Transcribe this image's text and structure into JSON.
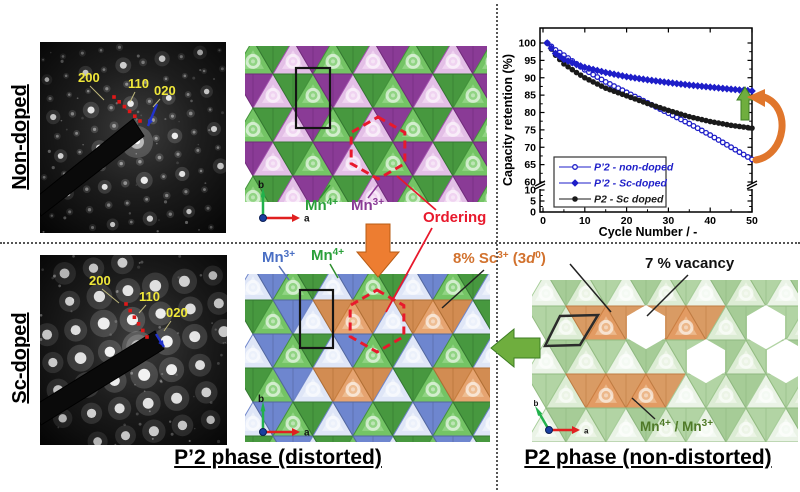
{
  "colors": {
    "mn4_green": "#2aa03a",
    "mn3_purple": "#8a3b96",
    "mn3_blue": "#4a6fc4",
    "sc_orange": "#d2722e",
    "ordering_red": "#e8192c",
    "mnmix_green": "#4f7a28",
    "vacancy_black": "#111111",
    "series_blue": "#1e1ec8",
    "series_black": "#1a1a1a",
    "arrow_orange": "#ed7d31",
    "arrow_green": "#6fae3e",
    "reflection_yellow": "#f0e83a"
  },
  "left_column": {
    "top_panel": {
      "side_label": "Non-doped",
      "reflections": [
        "200",
        "110",
        "020"
      ]
    },
    "bottom_panel": {
      "side_label": "Sc-doped",
      "reflections": [
        "200",
        "110",
        "020"
      ]
    }
  },
  "middle_top": {
    "mn4_label": {
      "base": "Mn",
      "sup": "4+"
    },
    "mn3_label": {
      "base": "Mn",
      "sup": "3+"
    },
    "ordering_label": "Ordering",
    "axis_a": "a",
    "axis_b": "b"
  },
  "middle_bottom": {
    "mn3_label": {
      "base": "Mn",
      "sup": "3+"
    },
    "mn4_label": {
      "base": "Mn",
      "sup": "4+"
    },
    "sc_label": {
      "pre": "8% Sc",
      "sup1": "3+",
      "mid": " (3",
      "d": "d",
      "sup2": "0",
      "post": ")"
    },
    "axis_a": "a",
    "axis_b": "b"
  },
  "right_bottom": {
    "vacancy_label": "7 % vacancy",
    "mn_label": {
      "pre": "Mn",
      "sup1": "4+",
      "mid": " / Mn",
      "sup2": "3+"
    },
    "axis_a": "a",
    "axis_b": "b"
  },
  "captions": {
    "p2prime": "P’2 phase (distorted)",
    "p2": "P2 phase (non-distorted)"
  },
  "chart_data": {
    "type": "line",
    "title": "",
    "xlabel": "Cycle Number / -",
    "ylabel": "Capacity retention (%)",
    "xlim": [
      0,
      50
    ],
    "x_ticks": [
      0,
      10,
      20,
      30,
      40,
      50
    ],
    "y_ticks_upper": [
      60,
      65,
      70,
      75,
      80,
      85,
      90,
      95,
      100
    ],
    "y_ticks_lower": [
      0,
      5,
      10
    ],
    "axis_break": {
      "axis": "y",
      "between": [
        10,
        60
      ]
    },
    "grid": false,
    "legend_position": "lower-left",
    "series": [
      {
        "name": "P’2 - non-doped",
        "marker": "open-circle",
        "color": "#1e1ec8",
        "x": [
          1,
          3,
          5,
          8,
          10,
          15,
          20,
          25,
          30,
          35,
          40,
          45,
          50
        ],
        "y": [
          100,
          98,
          96.5,
          94,
          92.3,
          88.8,
          85.8,
          82.8,
          79.8,
          76.8,
          73.5,
          70,
          66.5
        ]
      },
      {
        "name": "P’2 - Sc-doped",
        "marker": "filled-diamond",
        "color": "#1e1ec8",
        "x": [
          1,
          3,
          5,
          8,
          10,
          15,
          20,
          25,
          30,
          35,
          40,
          45,
          50
        ],
        "y": [
          100,
          97,
          95.3,
          93.8,
          93,
          91.5,
          90.3,
          89.4,
          88.6,
          87.9,
          87.3,
          86.7,
          86.2
        ]
      },
      {
        "name": "P2 - Sc doped",
        "marker": "filled-circle",
        "color": "#1a1a1a",
        "x": [
          1,
          3,
          5,
          8,
          10,
          15,
          20,
          25,
          30,
          35,
          40,
          45,
          50
        ],
        "y": [
          100,
          96.5,
          94,
          91.5,
          90,
          87,
          84.8,
          82.6,
          80.6,
          78.8,
          77.4,
          76.3,
          75.5
        ]
      }
    ],
    "annotations": [
      "green-up-arrow",
      "orange-curved-arrow"
    ]
  }
}
